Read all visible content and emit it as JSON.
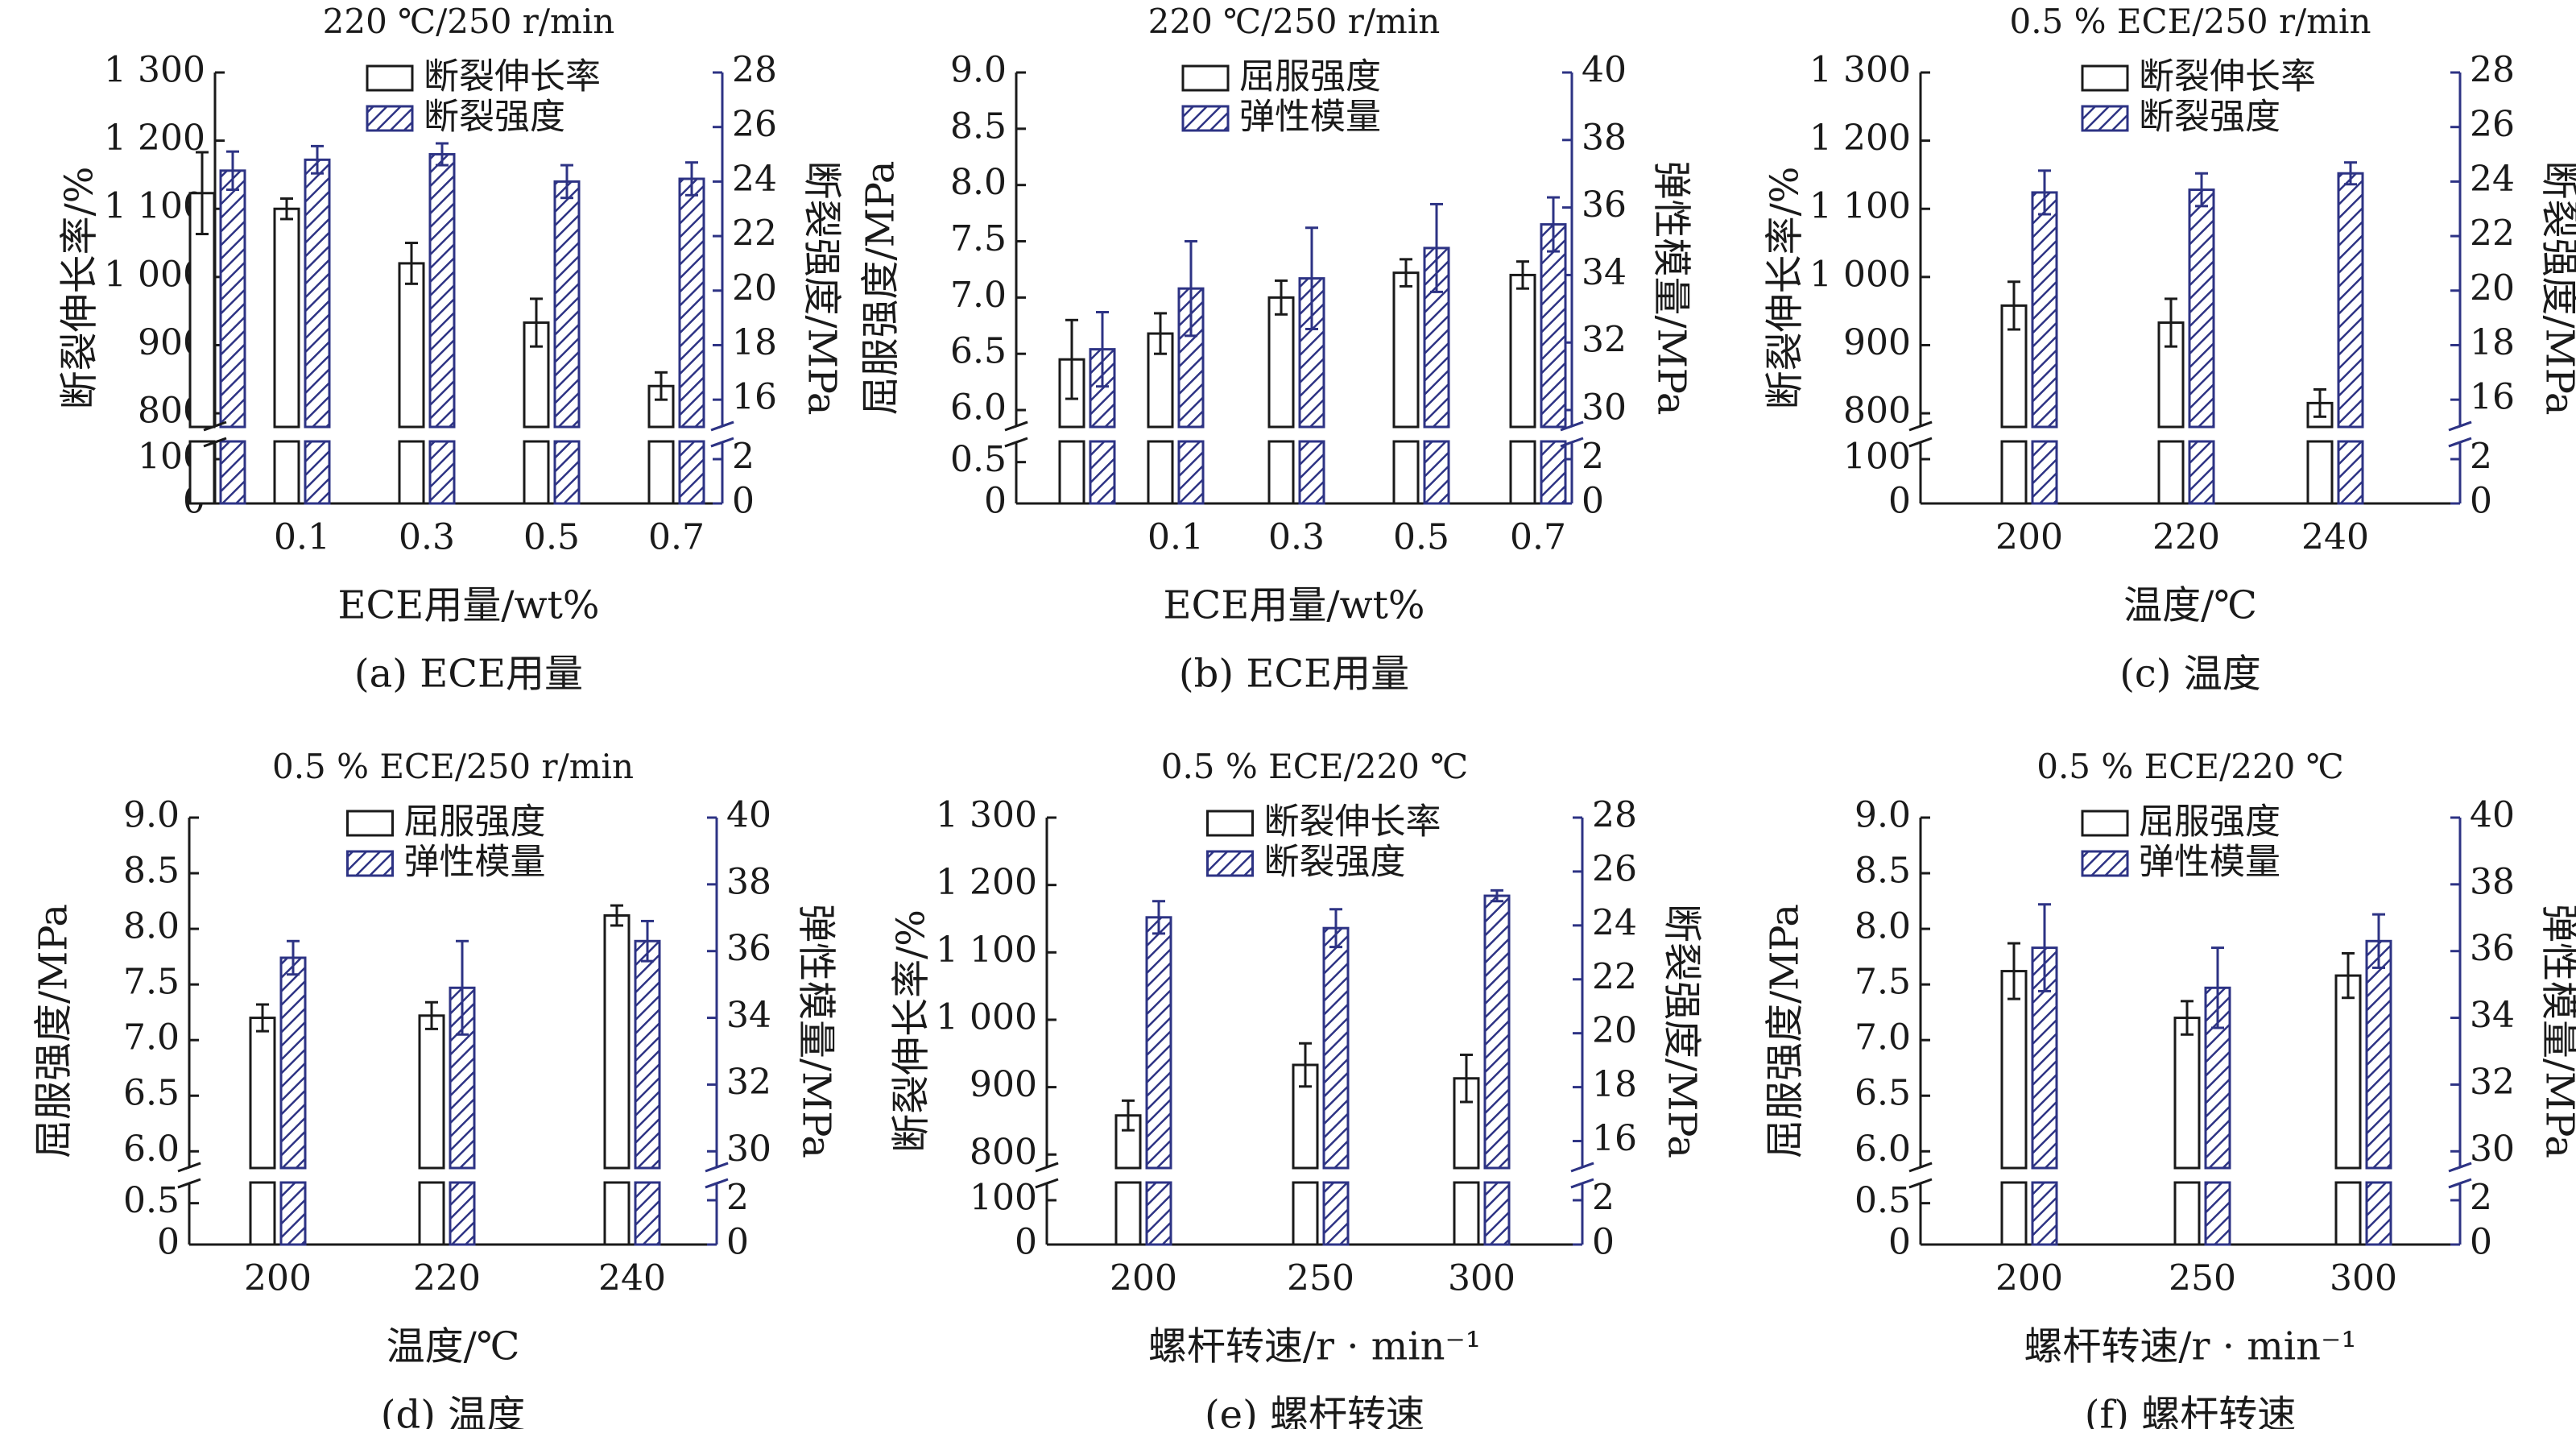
{
  "colors": {
    "axis": "#1a1a1a",
    "right_axis": "#2d3384",
    "hatch": "#2d3384",
    "bar_fill": "#ffffff"
  },
  "chart_data": [
    {
      "type": "bar",
      "title": "220 ℃/250 r/min",
      "caption": "(a) ECE用量",
      "xlabel": "ECE用量/wt%",
      "ylabel": "断裂伸长率/%",
      "y2label": "断裂强度/MPa",
      "categories": [
        "",
        "0.1",
        "0.3",
        "0.5",
        "0.7"
      ],
      "left_axis": {
        "upper_ticks": [
          "800",
          "900",
          "1 000",
          "1 100",
          "1 200",
          "1 300"
        ],
        "lower_ticks": [
          "0",
          "100"
        ],
        "upper_range": [
          780,
          1300
        ],
        "lower_range": [
          0,
          140
        ]
      },
      "right_axis": {
        "upper_ticks": [
          "16",
          "18",
          "20",
          "22",
          "24",
          "26",
          "28"
        ],
        "lower_ticks": [
          "0",
          "2"
        ],
        "upper_range": [
          15,
          28
        ],
        "lower_range": [
          0,
          2.8
        ]
      },
      "series": [
        {
          "name": "断裂伸长率",
          "axis": "left",
          "style": "open",
          "values": [
            1123,
            1100,
            1020,
            933,
            840
          ],
          "errors": [
            60,
            15,
            30,
            35,
            20
          ]
        },
        {
          "name": "断裂强度",
          "axis": "right",
          "style": "hatch",
          "values": [
            24.4,
            24.8,
            25.0,
            24.0,
            24.1
          ],
          "errors": [
            0.7,
            0.5,
            0.4,
            0.6,
            0.6
          ]
        }
      ],
      "legend": "top-right"
    },
    {
      "type": "bar",
      "title": "220 ℃/250 r/min",
      "caption": "(b) ECE用量",
      "xlabel": "ECE用量/wt%",
      "ylabel": "屈服强度/MPa",
      "y2label": "弹性模量/MPa",
      "categories": [
        "",
        "0.1",
        "0.3",
        "0.5",
        "0.7"
      ],
      "left_axis": {
        "upper_ticks": [
          "6.0",
          "6.5",
          "7.0",
          "7.5",
          "8.0",
          "8.5",
          "9.0"
        ],
        "lower_ticks": [
          "0",
          "0.5"
        ],
        "upper_range": [
          5.85,
          9.0
        ],
        "lower_range": [
          0,
          0.75
        ]
      },
      "right_axis": {
        "upper_ticks": [
          "30",
          "32",
          "34",
          "36",
          "38",
          "40"
        ],
        "lower_ticks": [
          "0",
          "2"
        ],
        "upper_range": [
          29.5,
          40
        ],
        "lower_range": [
          0,
          2.8
        ]
      },
      "series": [
        {
          "name": "屈服强度",
          "axis": "left",
          "style": "open",
          "values": [
            6.45,
            6.68,
            7.0,
            7.22,
            7.2
          ],
          "errors": [
            0.35,
            0.18,
            0.15,
            0.12,
            0.12
          ]
        },
        {
          "name": "弹性模量",
          "axis": "right",
          "style": "hatch",
          "values": [
            31.8,
            33.6,
            33.9,
            34.8,
            35.5
          ],
          "errors": [
            1.1,
            1.4,
            1.5,
            1.3,
            0.8
          ]
        }
      ],
      "legend": "top-right"
    },
    {
      "type": "bar",
      "title": "0.5 % ECE/250 r/min",
      "caption": "(c) 温度",
      "xlabel": "温度/℃",
      "ylabel": "断裂伸长率/%",
      "y2label": "断裂强度/MPa",
      "categories": [
        "200",
        "220",
        "240"
      ],
      "left_axis": {
        "upper_ticks": [
          "800",
          "900",
          "1 000",
          "1 100",
          "1 200",
          "1 300"
        ],
        "lower_ticks": [
          "0",
          "100"
        ],
        "upper_range": [
          780,
          1300
        ],
        "lower_range": [
          0,
          140
        ]
      },
      "right_axis": {
        "upper_ticks": [
          "16",
          "18",
          "20",
          "22",
          "24",
          "26",
          "28"
        ],
        "lower_ticks": [
          "0",
          "2"
        ],
        "upper_range": [
          15,
          28
        ],
        "lower_range": [
          0,
          2.8
        ]
      },
      "series": [
        {
          "name": "断裂伸长率",
          "axis": "left",
          "style": "open",
          "values": [
            958,
            933,
            815
          ],
          "errors": [
            35,
            35,
            20
          ]
        },
        {
          "name": "断裂强度",
          "axis": "right",
          "style": "hatch",
          "values": [
            23.6,
            23.7,
            24.3
          ],
          "errors": [
            0.8,
            0.6,
            0.4
          ]
        }
      ],
      "legend": "top-right"
    },
    {
      "type": "bar",
      "title": "0.5 % ECE/250 r/min",
      "caption": "(d) 温度",
      "xlabel": "温度/℃",
      "ylabel": "屈服强度/MPa",
      "y2label": "弹性模量/MPa",
      "categories": [
        "200",
        "220",
        "240"
      ],
      "left_axis": {
        "upper_ticks": [
          "6.0",
          "6.5",
          "7.0",
          "7.5",
          "8.0",
          "8.5",
          "9.0"
        ],
        "lower_ticks": [
          "0",
          "0.5"
        ],
        "upper_range": [
          5.85,
          9.0
        ],
        "lower_range": [
          0,
          0.75
        ]
      },
      "right_axis": {
        "upper_ticks": [
          "30",
          "32",
          "34",
          "36",
          "38",
          "40"
        ],
        "lower_ticks": [
          "0",
          "2"
        ],
        "upper_range": [
          29.5,
          40
        ],
        "lower_range": [
          0,
          2.8
        ]
      },
      "series": [
        {
          "name": "屈服强度",
          "axis": "left",
          "style": "open",
          "values": [
            7.2,
            7.22,
            8.12
          ],
          "errors": [
            0.12,
            0.12,
            0.09
          ]
        },
        {
          "name": "弹性模量",
          "axis": "right",
          "style": "hatch",
          "values": [
            35.8,
            34.9,
            36.3
          ],
          "errors": [
            0.5,
            1.4,
            0.6
          ]
        }
      ],
      "legend": "top-right"
    },
    {
      "type": "bar",
      "title": "0.5 % ECE/220 ℃",
      "caption": "(e) 螺杆转速",
      "xlabel": "螺杆转速/r · min⁻¹",
      "ylabel": "断裂伸长率/%",
      "y2label": "断裂强度/MPa",
      "categories": [
        "200",
        "250",
        "300"
      ],
      "left_axis": {
        "upper_ticks": [
          "800",
          "900",
          "1 000",
          "1 100",
          "1 200",
          "1 300"
        ],
        "lower_ticks": [
          "0",
          "100"
        ],
        "upper_range": [
          780,
          1300
        ],
        "lower_range": [
          0,
          140
        ]
      },
      "right_axis": {
        "upper_ticks": [
          "16",
          "18",
          "20",
          "22",
          "24",
          "26",
          "28"
        ],
        "lower_ticks": [
          "0",
          "2"
        ],
        "upper_range": [
          15,
          28
        ],
        "lower_range": [
          0,
          2.8
        ]
      },
      "series": [
        {
          "name": "断裂伸长率",
          "axis": "left",
          "style": "open",
          "values": [
            858,
            933,
            913
          ],
          "errors": [
            22,
            32,
            35
          ]
        },
        {
          "name": "断裂强度",
          "axis": "right",
          "style": "hatch",
          "values": [
            24.3,
            23.9,
            25.1
          ],
          "errors": [
            0.6,
            0.7,
            0.2
          ]
        }
      ],
      "legend": "top-right"
    },
    {
      "type": "bar",
      "title": "0.5 % ECE/220 ℃",
      "caption": "(f) 螺杆转速",
      "xlabel": "螺杆转速/r · min⁻¹",
      "ylabel": "屈服强度/MPa",
      "y2label": "弹性模量/MPa",
      "categories": [
        "200",
        "250",
        "300"
      ],
      "left_axis": {
        "upper_ticks": [
          "6.0",
          "6.5",
          "7.0",
          "7.5",
          "8.0",
          "8.5",
          "9.0"
        ],
        "lower_ticks": [
          "0",
          "0.5"
        ],
        "upper_range": [
          5.85,
          9.0
        ],
        "lower_range": [
          0,
          0.75
        ]
      },
      "right_axis": {
        "upper_ticks": [
          "30",
          "32",
          "34",
          "36",
          "38",
          "40"
        ],
        "lower_ticks": [
          "0",
          "2"
        ],
        "upper_range": [
          29.5,
          40
        ],
        "lower_range": [
          0,
          2.8
        ]
      },
      "series": [
        {
          "name": "屈服强度",
          "axis": "left",
          "style": "open",
          "values": [
            7.62,
            7.2,
            7.58
          ],
          "errors": [
            0.25,
            0.15,
            0.2
          ]
        },
        {
          "name": "弹性模量",
          "axis": "right",
          "style": "hatch",
          "values": [
            36.1,
            34.9,
            36.3
          ],
          "errors": [
            1.3,
            1.2,
            0.8
          ]
        }
      ],
      "legend": "top-right"
    }
  ]
}
